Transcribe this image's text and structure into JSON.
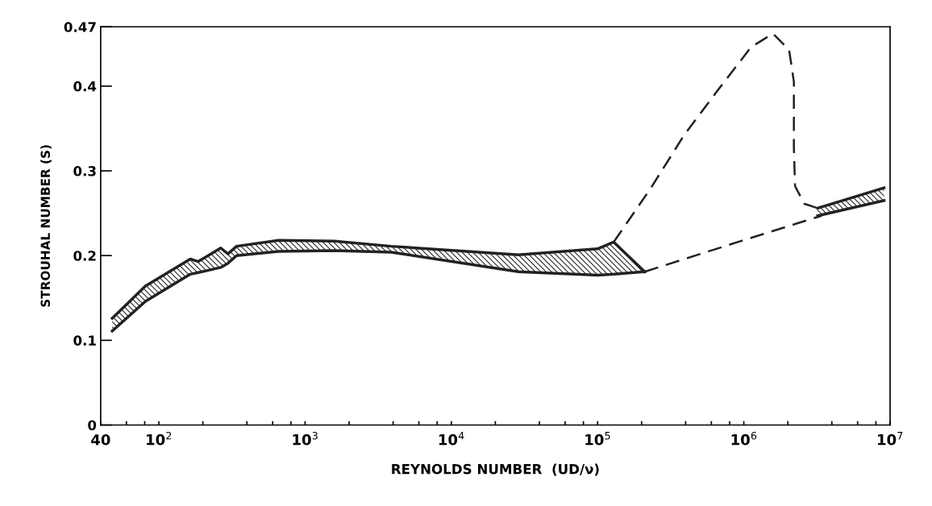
{
  "chart_data": {
    "type": "line",
    "xlabel": "REYNOLDS NUMBER  (UD/ν)",
    "ylabel": "STROUHAL NUMBER (S)",
    "log": "x",
    "grid": false,
    "legend": false,
    "xlim": [
      40,
      10000000
    ],
    "ylim": [
      0,
      0.47
    ],
    "xticks": [
      40,
      {
        "value": 60,
        "label": null
      },
      {
        "value": 80,
        "label": null
      },
      {
        "value": 100,
        "label": "10$^{2}$"
      },
      {
        "value": 200,
        "label": null
      },
      {
        "value": 400,
        "label": null
      },
      {
        "value": 600,
        "label": null
      },
      {
        "value": 800,
        "label": null
      },
      {
        "value": 1000,
        "label": "10$^{3}$"
      },
      {
        "value": 2000,
        "label": null
      },
      {
        "value": 4000,
        "label": null
      },
      {
        "value": 6000,
        "label": null
      },
      {
        "value": 8000,
        "label": null
      },
      {
        "value": 10000,
        "label": "10$^{4}$"
      },
      {
        "value": 20000,
        "label": null
      },
      {
        "value": 40000,
        "label": null
      },
      {
        "value": 60000,
        "label": null
      },
      {
        "value": 80000,
        "label": null
      },
      {
        "value": 100000,
        "label": "10$^{5}$"
      },
      {
        "value": 200000,
        "label": null
      },
      {
        "value": 400000,
        "label": null
      },
      {
        "value": 600000,
        "label": null
      },
      {
        "value": 800000,
        "label": null
      },
      {
        "value": 1000000,
        "label": "10$^{6}$"
      },
      {
        "value": 2000000,
        "label": null
      },
      {
        "value": 4000000,
        "label": null
      },
      {
        "value": 6000000,
        "label": null
      },
      {
        "value": 8000000,
        "label": null
      },
      {
        "value": 10000000,
        "label": "10$^{7}$"
      }
    ],
    "yticks": [
      0,
      0.1,
      0.2,
      0.3,
      0.4,
      0.47
    ],
    "series": [
      {
        "color": "#222222",
        "line_style": "solid",
        "x": [
          48,
          81,
          164,
          186,
          265,
          297,
          340,
          660,
          1580,
          3870,
          28800,
          100000,
          129000,
          210000
        ],
        "values": [
          0.126,
          0.164,
          0.196,
          0.193,
          0.209,
          0.202,
          0.211,
          0.218,
          0.217,
          0.211,
          0.201,
          0.208,
          0.216,
          0.181
        ]
      },
      {
        "color": "#222222",
        "line_style": "solid",
        "x": [
          48,
          81,
          164,
          186,
          265,
          297,
          340,
          660,
          1580,
          3870,
          28800,
          100000,
          129000,
          210000
        ],
        "values": [
          0.111,
          0.146,
          0.178,
          0.18,
          0.186,
          0.191,
          0.2,
          0.205,
          0.206,
          0.204,
          0.181,
          0.177,
          0.178,
          0.181
        ]
      },
      {
        "color": "#222222",
        "line_style": "solid",
        "x": [
          3200000,
          9100000
        ],
        "values": [
          0.256,
          0.28
        ]
      },
      {
        "color": "#222222",
        "line_style": "solid",
        "x": [
          3200000,
          9100000
        ],
        "values": [
          0.247,
          0.265
        ]
      },
      {
        "color": "#222222",
        "line_style": "dashed",
        "x": [
          129000,
          230000,
          390000,
          670000,
          1120000,
          1580000,
          2040000,
          2200000,
          2200000,
          2240000,
          2600000,
          3200000
        ],
        "values": [
          0.216,
          0.279,
          0.342,
          0.396,
          0.446,
          0.462,
          0.443,
          0.405,
          0.327,
          0.282,
          0.261,
          0.256
        ]
      },
      {
        "color": "#222222",
        "line_style": "dashed",
        "x": [
          210000,
          910000,
          3400000
        ],
        "values": [
          0.181,
          0.216,
          0.247
        ]
      }
    ]
  }
}
